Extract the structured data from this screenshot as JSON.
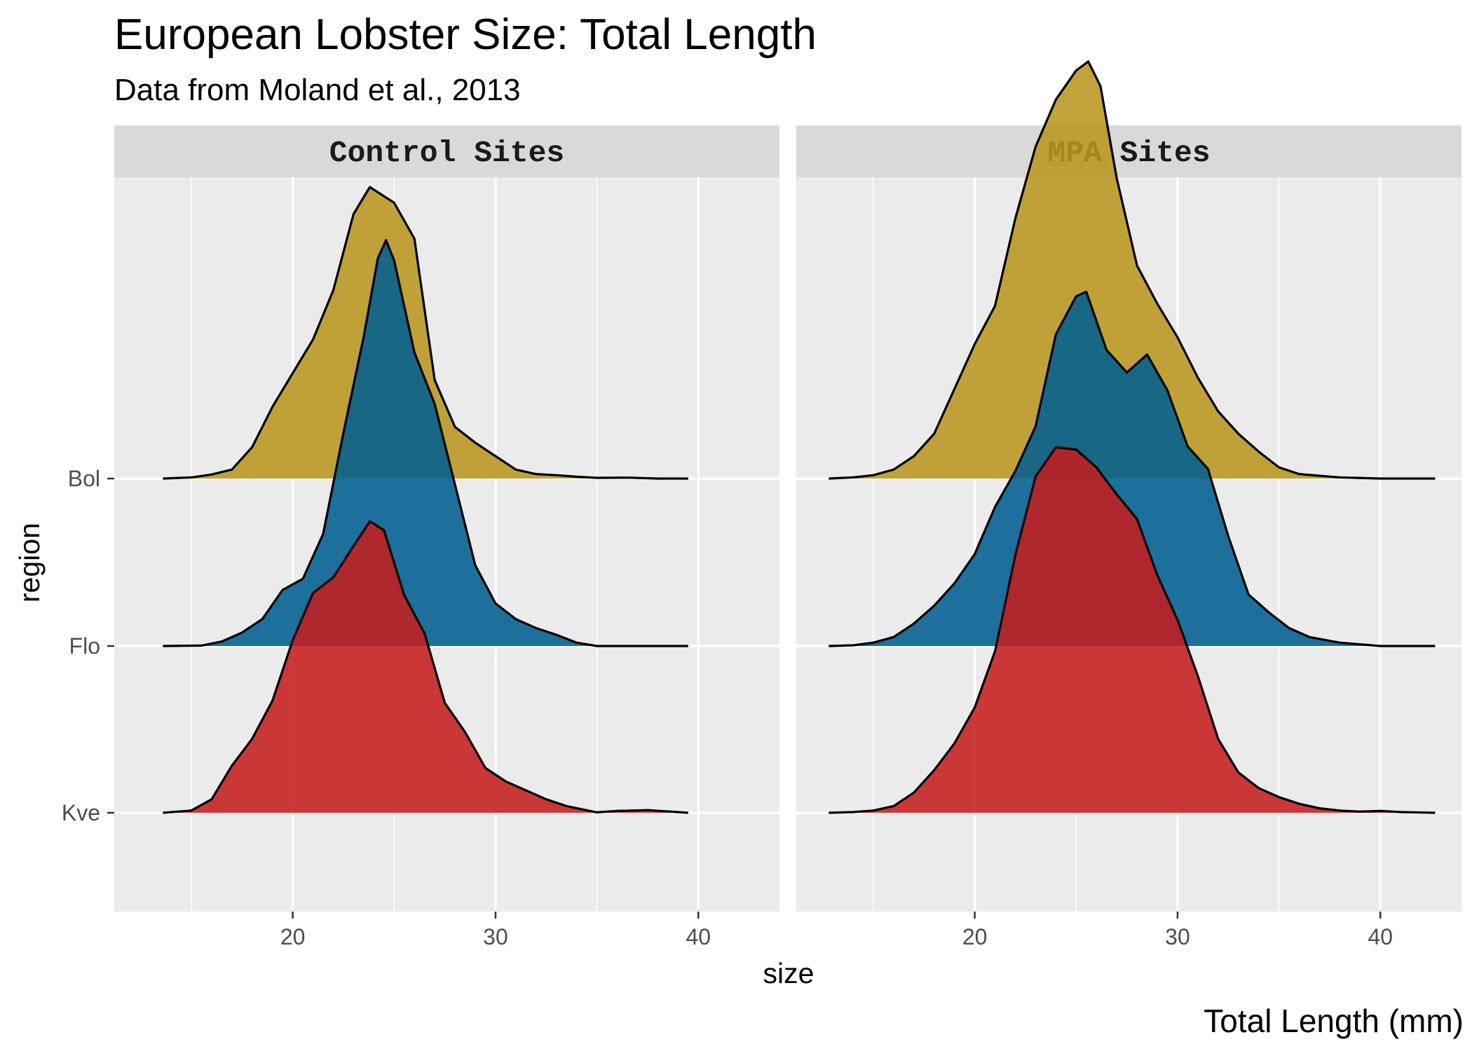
{
  "chart_data": {
    "type": "ridgeline",
    "title": "European Lobster Size: Total Length",
    "subtitle": "Data from Moland et al., 2013",
    "caption": "Total Length (mm)",
    "xlabel": "size",
    "ylabel": "region",
    "xlim": [
      11.2,
      44.0
    ],
    "x_ticks": [
      20,
      30,
      40
    ],
    "y_ticks": [
      "Bol",
      "Flo",
      "Kve"
    ],
    "grid": true,
    "legend": "none",
    "colors": {
      "Bol": "#b8961f",
      "Flo": "#005f8f",
      "Kve": "#c41e1e"
    },
    "panel_background": "#ebebeb",
    "strip_background": "#d9d9d9",
    "facets": [
      {
        "label": "Control Sites",
        "series": [
          {
            "region": "Bol",
            "points": [
              [
                13.6,
                0.0
              ],
              [
                15.0,
                0.005
              ],
              [
                16.0,
                0.018
              ],
              [
                17.0,
                0.04
              ],
              [
                18.0,
                0.14
              ],
              [
                19.0,
                0.32
              ],
              [
                20.0,
                0.47
              ],
              [
                21.0,
                0.62
              ],
              [
                22.0,
                0.84
              ],
              [
                23.0,
                1.18
              ],
              [
                23.8,
                1.3
              ],
              [
                25.0,
                1.23
              ],
              [
                26.0,
                1.07
              ],
              [
                27.0,
                0.44
              ],
              [
                28.0,
                0.23
              ],
              [
                29.0,
                0.16
              ],
              [
                30.0,
                0.1
              ],
              [
                31.0,
                0.04
              ],
              [
                32.0,
                0.02
              ],
              [
                33.0,
                0.015
              ],
              [
                34.0,
                0.008
              ],
              [
                35.0,
                0.003
              ],
              [
                36.5,
                0.004
              ],
              [
                38.0,
                0.0
              ],
              [
                39.5,
                0.0
              ]
            ]
          },
          {
            "region": "Flo",
            "points": [
              [
                13.6,
                0.0
              ],
              [
                15.5,
                0.002
              ],
              [
                16.5,
                0.02
              ],
              [
                17.5,
                0.06
              ],
              [
                18.5,
                0.12
              ],
              [
                19.5,
                0.25
              ],
              [
                20.5,
                0.3
              ],
              [
                21.5,
                0.5
              ],
              [
                22.5,
                0.95
              ],
              [
                23.5,
                1.38
              ],
              [
                24.2,
                1.73
              ],
              [
                24.6,
                1.81
              ],
              [
                25.0,
                1.72
              ],
              [
                26.0,
                1.31
              ],
              [
                27.0,
                1.08
              ],
              [
                28.0,
                0.72
              ],
              [
                29.0,
                0.36
              ],
              [
                30.0,
                0.19
              ],
              [
                31.0,
                0.12
              ],
              [
                32.0,
                0.08
              ],
              [
                33.0,
                0.05
              ],
              [
                34.0,
                0.015
              ],
              [
                35.0,
                0.0
              ],
              [
                39.5,
                0.0
              ]
            ]
          },
          {
            "region": "Kve",
            "points": [
              [
                13.6,
                0.0
              ],
              [
                15.0,
                0.01
              ],
              [
                16.0,
                0.06
              ],
              [
                17.0,
                0.21
              ],
              [
                18.0,
                0.33
              ],
              [
                19.0,
                0.5
              ],
              [
                20.0,
                0.77
              ],
              [
                21.0,
                0.98
              ],
              [
                22.0,
                1.05
              ],
              [
                23.0,
                1.19
              ],
              [
                23.8,
                1.3
              ],
              [
                24.5,
                1.26
              ],
              [
                25.5,
                0.97
              ],
              [
                26.5,
                0.8
              ],
              [
                27.5,
                0.49
              ],
              [
                28.5,
                0.36
              ],
              [
                29.5,
                0.2
              ],
              [
                30.5,
                0.14
              ],
              [
                31.5,
                0.1
              ],
              [
                32.5,
                0.06
              ],
              [
                33.5,
                0.03
              ],
              [
                35.0,
                0.002
              ],
              [
                36.0,
                0.008
              ],
              [
                37.5,
                0.012
              ],
              [
                39.5,
                0.0
              ]
            ]
          }
        ]
      },
      {
        "label": "MPA Sites",
        "series": [
          {
            "region": "Bol",
            "points": [
              [
                12.8,
                0.0
              ],
              [
                14.0,
                0.005
              ],
              [
                15.0,
                0.015
              ],
              [
                16.0,
                0.04
              ],
              [
                17.0,
                0.1
              ],
              [
                18.0,
                0.2
              ],
              [
                19.0,
                0.4
              ],
              [
                20.0,
                0.6
              ],
              [
                21.0,
                0.77
              ],
              [
                22.0,
                1.16
              ],
              [
                23.0,
                1.48
              ],
              [
                24.0,
                1.69
              ],
              [
                25.0,
                1.82
              ],
              [
                25.6,
                1.86
              ],
              [
                26.2,
                1.75
              ],
              [
                27.0,
                1.34
              ],
              [
                28.0,
                0.95
              ],
              [
                29.0,
                0.78
              ],
              [
                30.0,
                0.63
              ],
              [
                31.0,
                0.45
              ],
              [
                32.0,
                0.3
              ],
              [
                33.0,
                0.2
              ],
              [
                34.0,
                0.12
              ],
              [
                35.0,
                0.05
              ],
              [
                36.0,
                0.02
              ],
              [
                38.0,
                0.005
              ],
              [
                40.0,
                0.0
              ],
              [
                42.7,
                0.0
              ]
            ]
          },
          {
            "region": "Flo",
            "points": [
              [
                12.8,
                0.0
              ],
              [
                14.0,
                0.003
              ],
              [
                15.0,
                0.015
              ],
              [
                16.0,
                0.04
              ],
              [
                17.0,
                0.1
              ],
              [
                18.0,
                0.18
              ],
              [
                19.0,
                0.28
              ],
              [
                20.0,
                0.41
              ],
              [
                21.0,
                0.62
              ],
              [
                22.0,
                0.78
              ],
              [
                23.0,
                0.98
              ],
              [
                24.0,
                1.39
              ],
              [
                25.0,
                1.56
              ],
              [
                25.5,
                1.58
              ],
              [
                26.5,
                1.32
              ],
              [
                27.5,
                1.22
              ],
              [
                28.5,
                1.3
              ],
              [
                29.5,
                1.14
              ],
              [
                30.5,
                0.89
              ],
              [
                31.5,
                0.79
              ],
              [
                32.5,
                0.49
              ],
              [
                33.5,
                0.23
              ],
              [
                34.5,
                0.15
              ],
              [
                35.5,
                0.08
              ],
              [
                36.5,
                0.04
              ],
              [
                38.0,
                0.015
              ],
              [
                40.0,
                0.0
              ],
              [
                42.7,
                0.0
              ]
            ]
          },
          {
            "region": "Kve",
            "points": [
              [
                12.8,
                0.0
              ],
              [
                14.0,
                0.003
              ],
              [
                15.0,
                0.01
              ],
              [
                16.0,
                0.03
              ],
              [
                17.0,
                0.09
              ],
              [
                18.0,
                0.19
              ],
              [
                19.0,
                0.31
              ],
              [
                20.0,
                0.47
              ],
              [
                21.0,
                0.72
              ],
              [
                22.0,
                1.15
              ],
              [
                23.0,
                1.5
              ],
              [
                24.0,
                1.63
              ],
              [
                25.0,
                1.62
              ],
              [
                26.0,
                1.54
              ],
              [
                27.0,
                1.42
              ],
              [
                28.0,
                1.31
              ],
              [
                29.0,
                1.06
              ],
              [
                30.0,
                0.86
              ],
              [
                31.0,
                0.61
              ],
              [
                32.0,
                0.33
              ],
              [
                33.0,
                0.18
              ],
              [
                34.0,
                0.11
              ],
              [
                35.0,
                0.07
              ],
              [
                36.0,
                0.04
              ],
              [
                37.0,
                0.02
              ],
              [
                38.0,
                0.01
              ],
              [
                39.0,
                0.005
              ],
              [
                40.0,
                0.008
              ],
              [
                41.0,
                0.003
              ],
              [
                42.7,
                0.0
              ]
            ]
          }
        ]
      }
    ]
  }
}
